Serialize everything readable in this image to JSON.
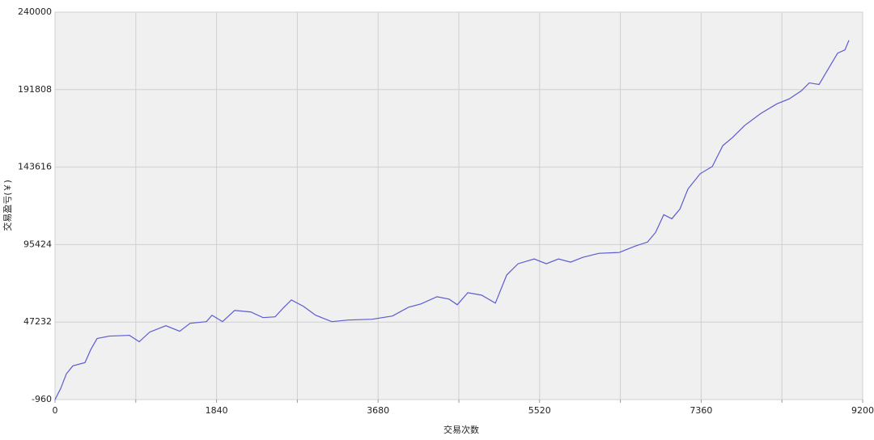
{
  "chart_data": {
    "type": "line",
    "x_label": "交易次数",
    "y_label": "交易盈亏(￥)",
    "xlim": [
      0,
      9200
    ],
    "xticks": [
      0,
      1840,
      3680,
      5520,
      7360,
      9200
    ],
    "x_minor_ticks": [
      920,
      2760,
      4600,
      6440,
      8280
    ],
    "ylim": [
      -960,
      240000
    ],
    "yticks": [
      -960,
      47232,
      95424,
      143616,
      191808,
      240000
    ],
    "grid": true,
    "series": [
      {
        "color": "#5b5bd1",
        "x": [
          0,
          65,
          129,
          203,
          341,
          406,
          479,
          618,
          848,
          959,
          1078,
          1263,
          1420,
          1539,
          1724,
          1788,
          1908,
          2046,
          2231,
          2369,
          2507,
          2600,
          2692,
          2830,
          2968,
          3153,
          3337,
          3613,
          3844,
          4028,
          4167,
          4351,
          4489,
          4582,
          4702,
          4859,
          5016,
          5145,
          5274,
          5458,
          5597,
          5735,
          5873,
          6011,
          6196,
          6426,
          6611,
          6749,
          6841,
          6934,
          7026,
          7118,
          7210,
          7349,
          7487,
          7607,
          7717,
          7855,
          8040,
          8224,
          8362,
          8500,
          8592,
          8703,
          8795,
          8915,
          8998,
          9044
        ],
        "values": [
          -960,
          6000,
          15000,
          20000,
          22000,
          30000,
          37000,
          38500,
          39000,
          35000,
          41000,
          45000,
          41500,
          46500,
          47500,
          51500,
          47500,
          54500,
          53500,
          50000,
          50500,
          56000,
          61000,
          57000,
          51500,
          47500,
          48500,
          49000,
          51000,
          56500,
          58500,
          63000,
          61500,
          58000,
          65500,
          64000,
          59000,
          76500,
          83500,
          86500,
          83500,
          86500,
          84500,
          87500,
          90000,
          90500,
          94500,
          97000,
          103000,
          114000,
          111500,
          117500,
          130000,
          139500,
          144000,
          157000,
          162000,
          169500,
          177000,
          183000,
          186000,
          191000,
          196000,
          195000,
          203500,
          214500,
          216500,
          222500
        ]
      }
    ]
  }
}
